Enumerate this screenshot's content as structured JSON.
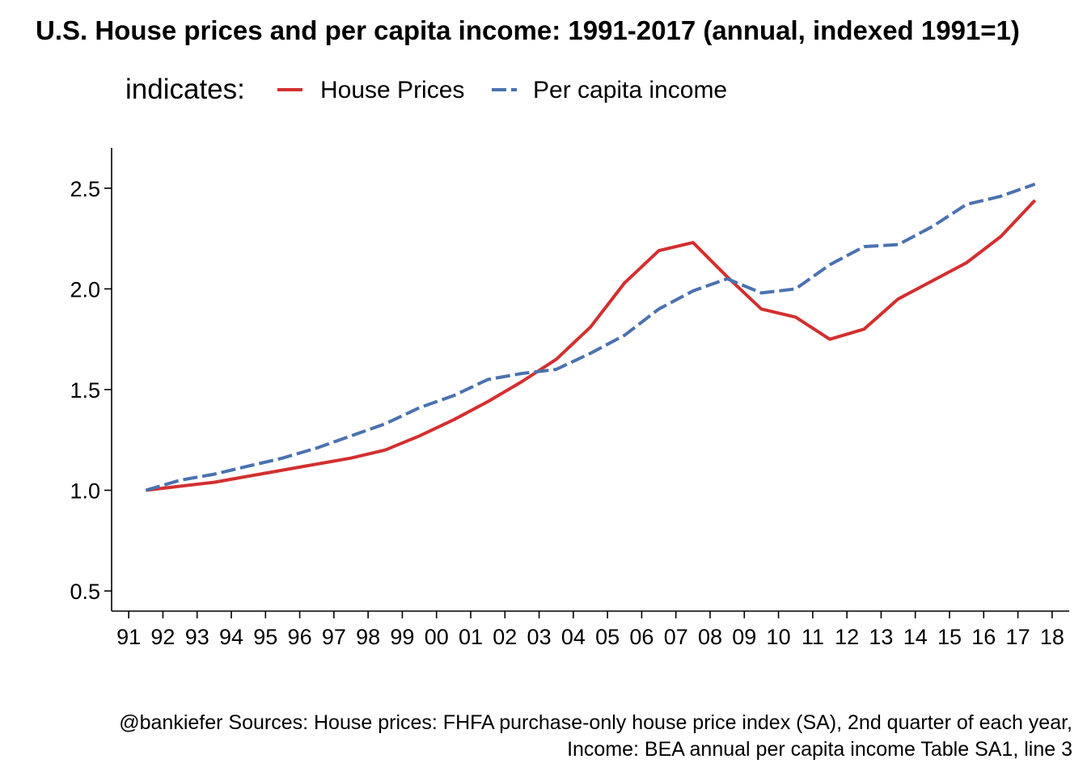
{
  "chart_data": {
    "type": "line",
    "title": "U.S. House prices and per capita income: 1991-2017 (annual, indexed 1991=1)",
    "legend_title": "indicates:",
    "legend_position": "top",
    "x_tick_labels": [
      "91",
      "92",
      "93",
      "94",
      "95",
      "96",
      "97",
      "98",
      "99",
      "00",
      "01",
      "02",
      "03",
      "04",
      "05",
      "06",
      "07",
      "08",
      "09",
      "10",
      "11",
      "12",
      "13",
      "14",
      "15",
      "16",
      "17",
      "18"
    ],
    "x_years": [
      1991,
      1992,
      1993,
      1994,
      1995,
      1996,
      1997,
      1998,
      1999,
      2000,
      2001,
      2002,
      2003,
      2004,
      2005,
      2006,
      2007,
      2008,
      2009,
      2010,
      2011,
      2012,
      2013,
      2014,
      2015,
      2016,
      2017
    ],
    "xlim": [
      1990.5,
      2018.5
    ],
    "ylim": [
      0.4,
      2.7
    ],
    "y_ticks": [
      0.5,
      1.0,
      1.5,
      2.0,
      2.5
    ],
    "y_tick_labels": [
      "0.5",
      "1.0",
      "1.5",
      "2.0",
      "2.5"
    ],
    "grid": false,
    "series": [
      {
        "name": "House Prices",
        "color": "#d32f2f",
        "dash": "solid",
        "values": [
          1.0,
          1.02,
          1.04,
          1.07,
          1.1,
          1.13,
          1.16,
          1.2,
          1.27,
          1.35,
          1.44,
          1.54,
          1.65,
          1.81,
          2.03,
          2.19,
          2.23,
          2.06,
          1.9,
          1.86,
          1.75,
          1.8,
          1.95,
          2.04,
          2.13,
          2.26,
          2.44
        ]
      },
      {
        "name": "Per capita income",
        "color": "#4a72b0",
        "dash": "dashed",
        "values": [
          1.0,
          1.05,
          1.08,
          1.12,
          1.16,
          1.21,
          1.27,
          1.33,
          1.41,
          1.47,
          1.55,
          1.58,
          1.6,
          1.68,
          1.77,
          1.9,
          1.99,
          2.05,
          1.98,
          2.0,
          2.12,
          2.21,
          2.22,
          2.31,
          2.42,
          2.46,
          2.52
        ]
      }
    ],
    "caption": [
      "@bankiefer Sources: House prices: FHFA purchase-only house price index (SA), 2nd quarter of each year,",
      "Income: BEA annual per capita income Table SA1, line 3"
    ]
  }
}
